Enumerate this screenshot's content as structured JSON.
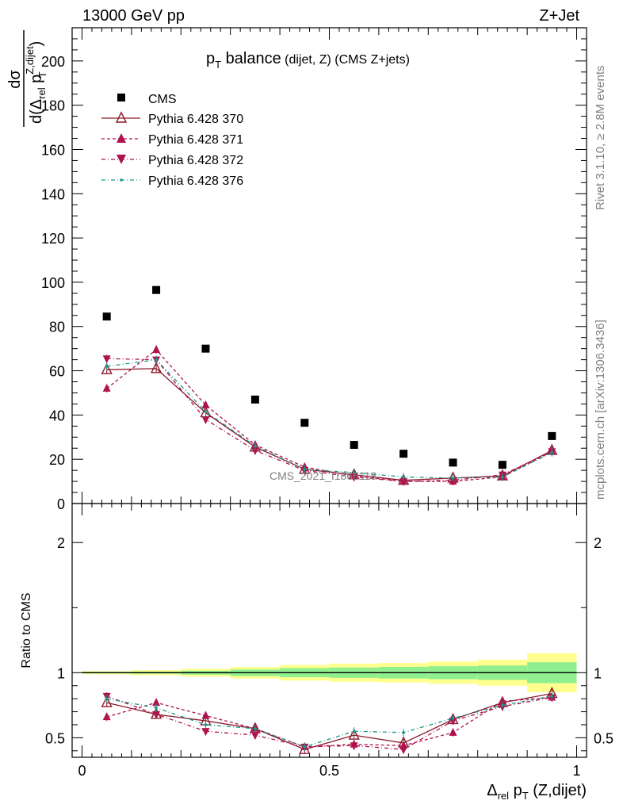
{
  "header": {
    "energy_label": "13000 GeV pp",
    "process_label": "Z+Jet"
  },
  "side_text": {
    "rivet": "Rivet 3.1.10, ≥ 2.8M events",
    "mcplots": "mcplots.cern.ch [arXiv:1306.3436]"
  },
  "main_plot": {
    "title_main": "p",
    "title_sub": "T",
    "title_rest": " balance",
    "title_small": " (dijet, Z) (CMS Z+jets)",
    "watermark": "CMS_2021_I1866118",
    "ylabel": "dσ / d(Δrel pT Z,dijet)",
    "legend": [
      "CMS",
      "Pythia 6.428 370",
      "Pythia 6.428 371",
      "Pythia 6.428 372",
      "Pythia 6.428 376"
    ]
  },
  "ratio_plot": {
    "ylabel": "Ratio to CMS"
  },
  "xaxis": {
    "label": "Δrel pT (Z,dijet)"
  },
  "colors": {
    "data": "#000000",
    "p370": "#8b1a2b",
    "p371": "#b0124e",
    "p372": "#b0124e",
    "p376": "#1a9a8a",
    "band_inner": "#90f090",
    "band_outer": "#ffff90"
  },
  "chart_data": [
    {
      "type": "scatter",
      "title": "pT balance (dijet, Z) (CMS Z+jets)",
      "xlim": [
        -0.02,
        1.02
      ],
      "ylim": [
        0,
        215
      ],
      "yticks": [
        0,
        20,
        40,
        60,
        80,
        100,
        120,
        140,
        160,
        180,
        200
      ],
      "x": [
        0.05,
        0.15,
        0.25,
        0.35,
        0.45,
        0.55,
        0.65,
        0.75,
        0.85,
        0.95
      ],
      "series": [
        {
          "name": "CMS",
          "values": [
            84.5,
            96.5,
            70.0,
            47.0,
            36.5,
            26.5,
            22.5,
            18.5,
            17.5,
            30.5
          ]
        },
        {
          "name": "Pythia 6.428 370",
          "values": [
            60.5,
            61.0,
            41.0,
            25.5,
            15.5,
            13.0,
            10.5,
            11.5,
            12.5,
            24.0
          ]
        },
        {
          "name": "Pythia 6.428 371",
          "values": [
            52.0,
            69.5,
            44.5,
            26.5,
            16.5,
            12.5,
            10.0,
            10.0,
            12.0,
            23.5
          ]
        },
        {
          "name": "Pythia 6.428 372",
          "values": [
            65.5,
            65.0,
            38.0,
            24.0,
            15.0,
            12.0,
            10.0,
            10.5,
            13.0,
            23.5
          ]
        },
        {
          "name": "Pythia 6.428 376",
          "values": [
            62.0,
            65.0,
            41.5,
            26.0,
            15.5,
            14.0,
            12.0,
            11.5,
            12.0,
            23.0
          ]
        }
      ]
    },
    {
      "type": "scatter",
      "ylabel": "Ratio to CMS",
      "xlim": [
        -0.02,
        1.02
      ],
      "ylim": [
        0.35,
        2.3
      ],
      "yticks": [
        0.5,
        1,
        2
      ],
      "x": [
        0.05,
        0.15,
        0.25,
        0.35,
        0.45,
        0.55,
        0.65,
        0.75,
        0.85,
        0.95
      ],
      "xticks": [
        0,
        0.5,
        1
      ],
      "band_inner": [
        0.006,
        0.008,
        0.015,
        0.025,
        0.035,
        0.04,
        0.045,
        0.05,
        0.055,
        0.08
      ],
      "band_outer": [
        0.012,
        0.02,
        0.03,
        0.045,
        0.06,
        0.07,
        0.075,
        0.085,
        0.1,
        0.15
      ],
      "series": [
        {
          "name": "Pythia 6.428 370",
          "values": [
            0.77,
            0.68,
            0.63,
            0.57,
            0.41,
            0.52,
            0.46,
            0.64,
            0.77,
            0.84
          ]
        },
        {
          "name": "Pythia 6.428 371",
          "values": [
            0.66,
            0.77,
            0.67,
            0.57,
            0.43,
            0.45,
            0.44,
            0.54,
            0.78,
            0.81
          ]
        },
        {
          "name": "Pythia 6.428 372",
          "values": [
            0.82,
            0.68,
            0.55,
            0.52,
            0.43,
            0.44,
            0.41,
            0.63,
            0.74,
            0.81
          ]
        },
        {
          "name": "Pythia 6.428 376",
          "values": [
            0.8,
            0.73,
            0.6,
            0.57,
            0.43,
            0.55,
            0.54,
            0.65,
            0.75,
            0.82
          ]
        }
      ]
    }
  ]
}
